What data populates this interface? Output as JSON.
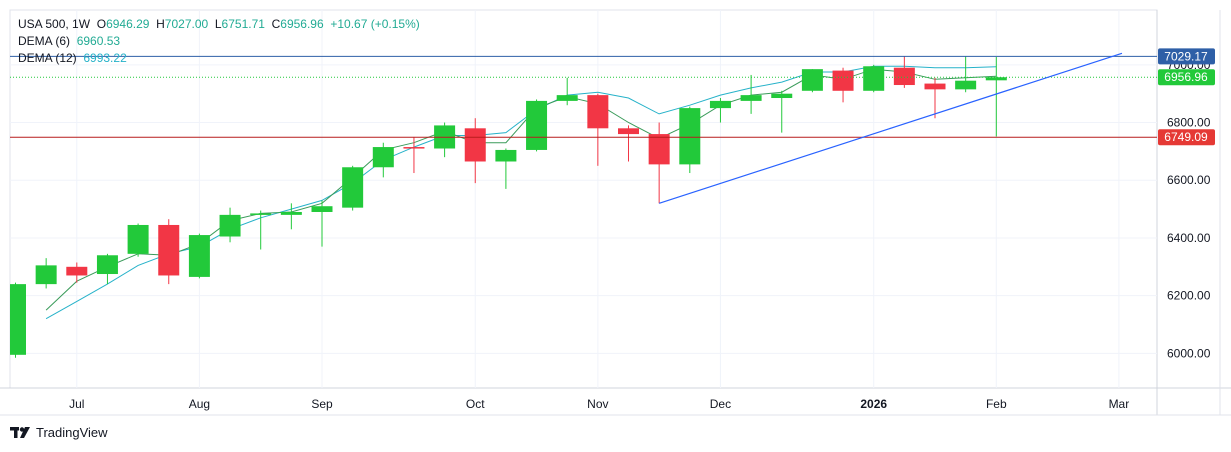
{
  "header": {
    "symbol": "USA 500",
    "interval": "1W",
    "open_label": "O",
    "open": "6946.29",
    "high_label": "H",
    "high": "7027.00",
    "low_label": "L",
    "low": "6751.71",
    "close_label": "C",
    "close": "6956.96",
    "change": "+10.67 (+0.15%)"
  },
  "indicators": [
    {
      "label": "DEMA (6)",
      "value": "6960.53"
    },
    {
      "label": "DEMA (12)",
      "value": "6993.22"
    }
  ],
  "footer": {
    "brand": "TradingView"
  },
  "colors": {
    "up": "#22c93a",
    "down": "#f23645",
    "dema6": "#3a9b5a",
    "dema12": "#26b2c9",
    "trendline": "#2962ff",
    "hline_top": "#2e5fa7",
    "hline_support": "#b71c1c"
  },
  "chart_data": {
    "type": "candlestick",
    "title": "USA 500",
    "xlabel": "",
    "ylabel": "",
    "ylim": [
      5880,
      7190
    ],
    "yticks": [
      "6000.00",
      "6200.00",
      "6400.00",
      "6600.00",
      "6800.00",
      "7000.00"
    ],
    "xticks": [
      {
        "label": "Jul",
        "week": 2
      },
      {
        "label": "Aug",
        "week": 6
      },
      {
        "label": "Sep",
        "week": 10
      },
      {
        "label": "Oct",
        "week": 15
      },
      {
        "label": "Nov",
        "week": 19
      },
      {
        "label": "Dec",
        "week": 23
      },
      {
        "label": "2026",
        "week": 28,
        "bold": true
      },
      {
        "label": "Feb",
        "week": 32
      },
      {
        "label": "Mar",
        "week": 36
      }
    ],
    "candles": [
      {
        "o": 5995,
        "h": 6245,
        "l": 5985,
        "c": 6240
      },
      {
        "o": 6240,
        "h": 6330,
        "l": 6225,
        "c": 6305
      },
      {
        "o": 6300,
        "h": 6315,
        "l": 6245,
        "c": 6270
      },
      {
        "o": 6275,
        "h": 6345,
        "l": 6240,
        "c": 6340
      },
      {
        "o": 6345,
        "h": 6450,
        "l": 6335,
        "c": 6445
      },
      {
        "o": 6445,
        "h": 6465,
        "l": 6240,
        "c": 6270
      },
      {
        "o": 6265,
        "h": 6415,
        "l": 6260,
        "c": 6410
      },
      {
        "o": 6405,
        "h": 6505,
        "l": 6385,
        "c": 6480
      },
      {
        "o": 6480,
        "h": 6495,
        "l": 6360,
        "c": 6485
      },
      {
        "o": 6480,
        "h": 6520,
        "l": 6430,
        "c": 6490
      },
      {
        "o": 6490,
        "h": 6530,
        "l": 6370,
        "c": 6510
      },
      {
        "o": 6505,
        "h": 6650,
        "l": 6495,
        "c": 6645
      },
      {
        "o": 6645,
        "h": 6730,
        "l": 6610,
        "c": 6715
      },
      {
        "o": 6715,
        "h": 6750,
        "l": 6625,
        "c": 6710
      },
      {
        "o": 6710,
        "h": 6800,
        "l": 6680,
        "c": 6790
      },
      {
        "o": 6780,
        "h": 6815,
        "l": 6590,
        "c": 6665
      },
      {
        "o": 6665,
        "h": 6710,
        "l": 6570,
        "c": 6705
      },
      {
        "o": 6705,
        "h": 6880,
        "l": 6700,
        "c": 6875
      },
      {
        "o": 6875,
        "h": 6955,
        "l": 6860,
        "c": 6895
      },
      {
        "o": 6895,
        "h": 6900,
        "l": 6650,
        "c": 6780
      },
      {
        "o": 6780,
        "h": 6790,
        "l": 6665,
        "c": 6760
      },
      {
        "o": 6760,
        "h": 6800,
        "l": 6520,
        "c": 6655
      },
      {
        "o": 6655,
        "h": 6855,
        "l": 6625,
        "c": 6850
      },
      {
        "o": 6850,
        "h": 6885,
        "l": 6800,
        "c": 6875
      },
      {
        "o": 6875,
        "h": 6965,
        "l": 6830,
        "c": 6895
      },
      {
        "o": 6885,
        "h": 6910,
        "l": 6765,
        "c": 6900
      },
      {
        "o": 6910,
        "h": 6985,
        "l": 6905,
        "c": 6985
      },
      {
        "o": 6980,
        "h": 6990,
        "l": 6870,
        "c": 6910
      },
      {
        "o": 6910,
        "h": 7000,
        "l": 6905,
        "c": 6995
      },
      {
        "o": 6990,
        "h": 7030,
        "l": 6920,
        "c": 6930
      },
      {
        "o": 6935,
        "h": 6955,
        "l": 6815,
        "c": 6915
      },
      {
        "o": 6915,
        "h": 7030,
        "l": 6905,
        "c": 6945
      },
      {
        "o": 6946.29,
        "h": 7027.0,
        "l": 6751.71,
        "c": 6956.96
      }
    ],
    "dema6": [
      null,
      6150,
      6250,
      6300,
      6345,
      6340,
      6380,
      6460,
      6485,
      6490,
      6520,
      6610,
      6705,
      6730,
      6770,
      6730,
      6730,
      6850,
      6890,
      6865,
      6800,
      6745,
      6795,
      6860,
      6895,
      6905,
      6965,
      6950,
      6985,
      6975,
      6950,
      6955,
      6960.53
    ],
    "dema12": [
      null,
      6120,
      6180,
      6240,
      6305,
      6345,
      6370,
      6430,
      6470,
      6500,
      6530,
      6590,
      6670,
      6715,
      6755,
      6755,
      6765,
      6845,
      6895,
      6905,
      6885,
      6830,
      6860,
      6895,
      6920,
      6940,
      6975,
      6975,
      6995,
      6995,
      6990,
      6990,
      6993.22
    ],
    "hlines": [
      {
        "price": 7029.17,
        "label": "7029.17",
        "style": "solid",
        "color": "#2e5fa7"
      },
      {
        "price": 6956.96,
        "label": "6956.96",
        "style": "dotted",
        "color": "#22c93a"
      },
      {
        "price": 6749.09,
        "label": "6749.09",
        "style": "solid",
        "color": "#b71c1c"
      }
    ],
    "trendline": {
      "from": {
        "week": 21,
        "price": 6520
      },
      "to": {
        "week": 36.1,
        "price": 7040
      }
    }
  }
}
